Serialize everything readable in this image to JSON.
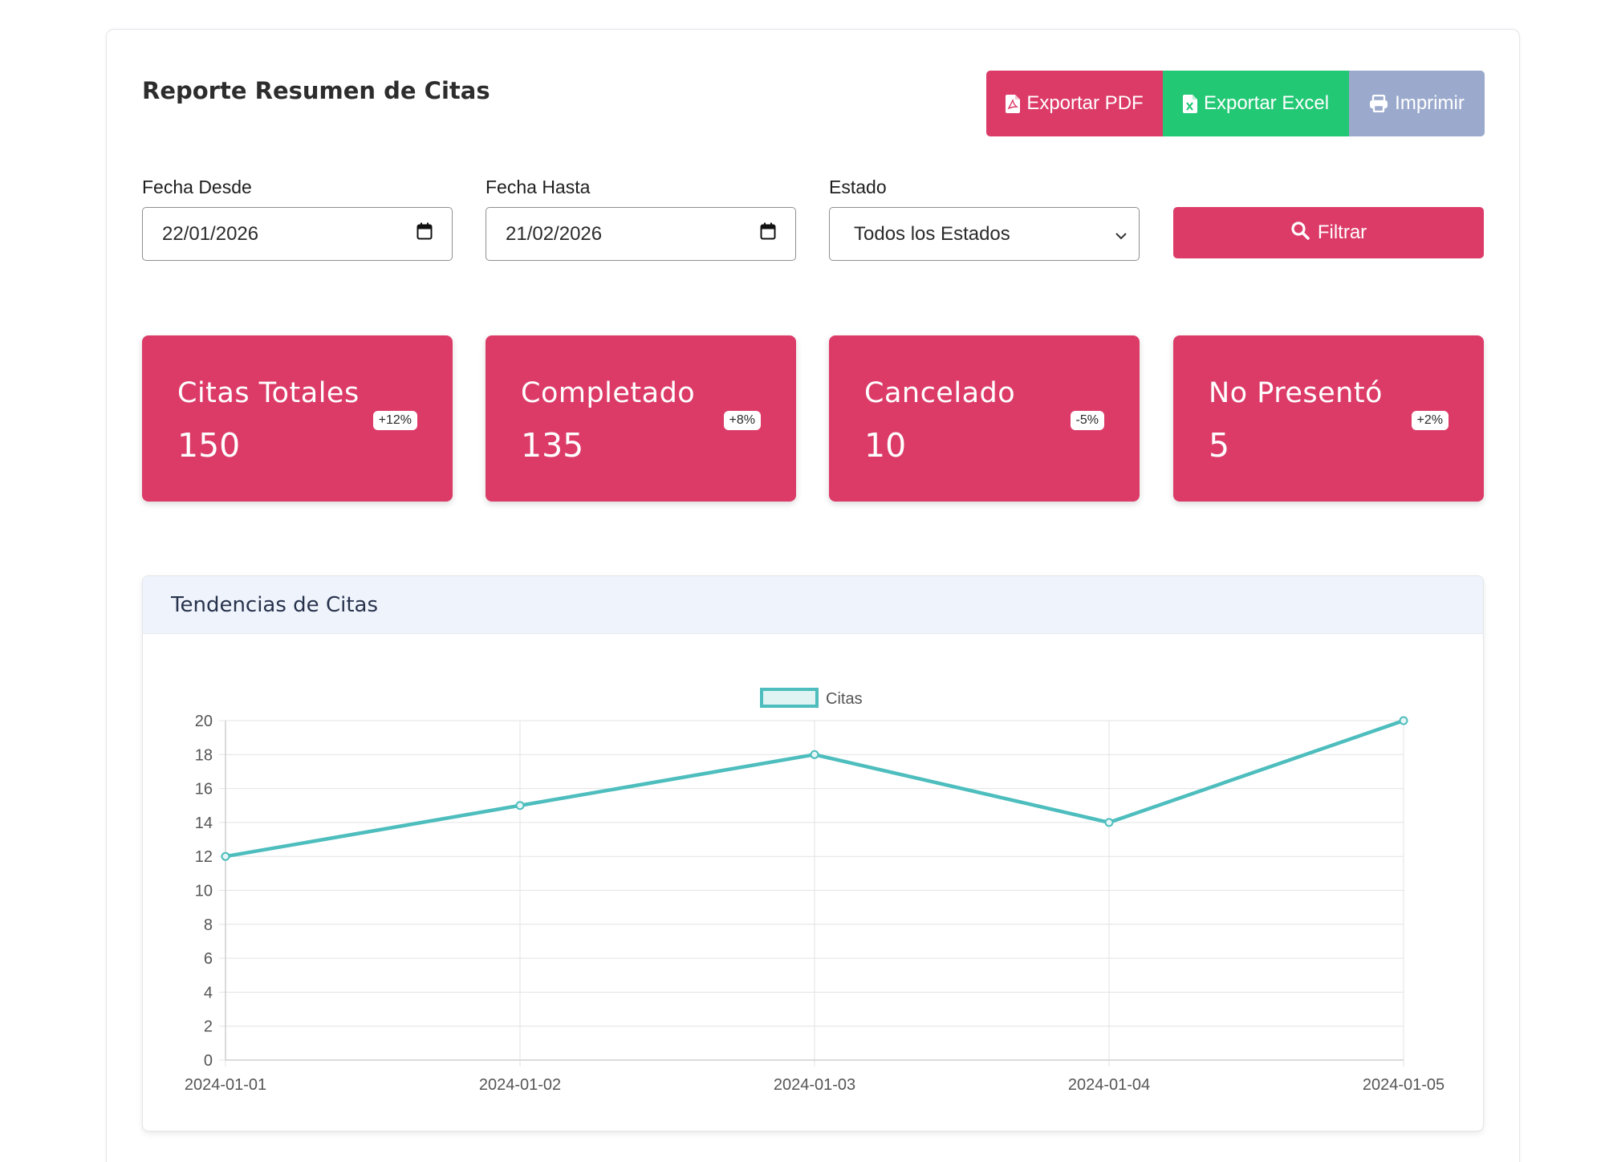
{
  "header": {
    "title": "Reporte Resumen de Citas",
    "buttons": {
      "pdf_label": "Exportar PDF",
      "excel_label": "Exportar Excel",
      "print_label": "Imprimir"
    }
  },
  "filters": {
    "date_from": {
      "label": "Fecha Desde",
      "value": "22/01/2026"
    },
    "date_to": {
      "label": "Fecha Hasta",
      "value": "21/02/2026"
    },
    "status": {
      "label": "Estado",
      "selected": "Todos los Estados"
    },
    "filter_button_label": "Filtrar"
  },
  "stats": [
    {
      "title": "Citas Totales",
      "value": "150",
      "change": "+12%"
    },
    {
      "title": "Completado",
      "value": "135",
      "change": "+8%"
    },
    {
      "title": "Cancelado",
      "value": "10",
      "change": "-5%"
    },
    {
      "title": "No Presentó",
      "value": "5",
      "change": "+2%"
    }
  ],
  "chart_section": {
    "title": "Tendencias de Citas"
  },
  "colors": {
    "primary": "#dc3b68",
    "excel": "#23c875",
    "print": "#9aa9cc",
    "line": "#4dbdbd"
  },
  "chart_data": {
    "type": "line",
    "categories": [
      "2024-01-01",
      "2024-01-02",
      "2024-01-03",
      "2024-01-04",
      "2024-01-05"
    ],
    "series": [
      {
        "name": "Citas",
        "values": [
          12,
          15,
          18,
          14,
          20
        ]
      }
    ],
    "ylim": [
      0,
      20
    ],
    "yticks": [
      0,
      2,
      4,
      6,
      8,
      10,
      12,
      14,
      16,
      18,
      20
    ],
    "grid": true,
    "legend": "top-center"
  }
}
